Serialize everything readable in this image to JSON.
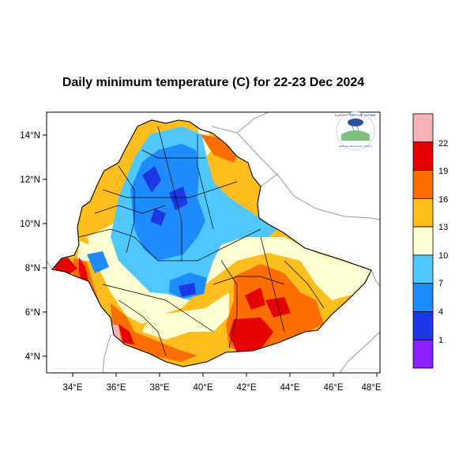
{
  "title": "Daily minimum temperature (C) for 22-23 Dec 2024",
  "map": {
    "lat_range": [
      3.2,
      15.0
    ],
    "lon_range": [
      33.0,
      48.2
    ],
    "y_ticks": [
      "14°N",
      "12°N",
      "10°N",
      "8°N",
      "6°N",
      "4°N"
    ],
    "x_ticks": [
      "34°E",
      "36°E",
      "38°E",
      "40°E",
      "42°E",
      "44°E",
      "46°E",
      "48°E"
    ]
  },
  "colorbar": {
    "labels": [
      "22",
      "19",
      "16",
      "13",
      "10",
      "7",
      "4",
      "1"
    ],
    "colors": [
      "#f7b2b7",
      "#e60000",
      "#ff6e00",
      "#ffbe1e",
      "#ffffd2",
      "#50c8ff",
      "#1e8cff",
      "#1e37e6",
      "#8c1eff"
    ]
  },
  "logo": {
    "name": "ethiopian-meteorology-institute-logo",
    "text_top": "የኢትዮጵያ ሜቲዮሮሎጂ ኢንስቲቱት",
    "text_bottom": "Ethiopian Meteorology Institute"
  }
}
